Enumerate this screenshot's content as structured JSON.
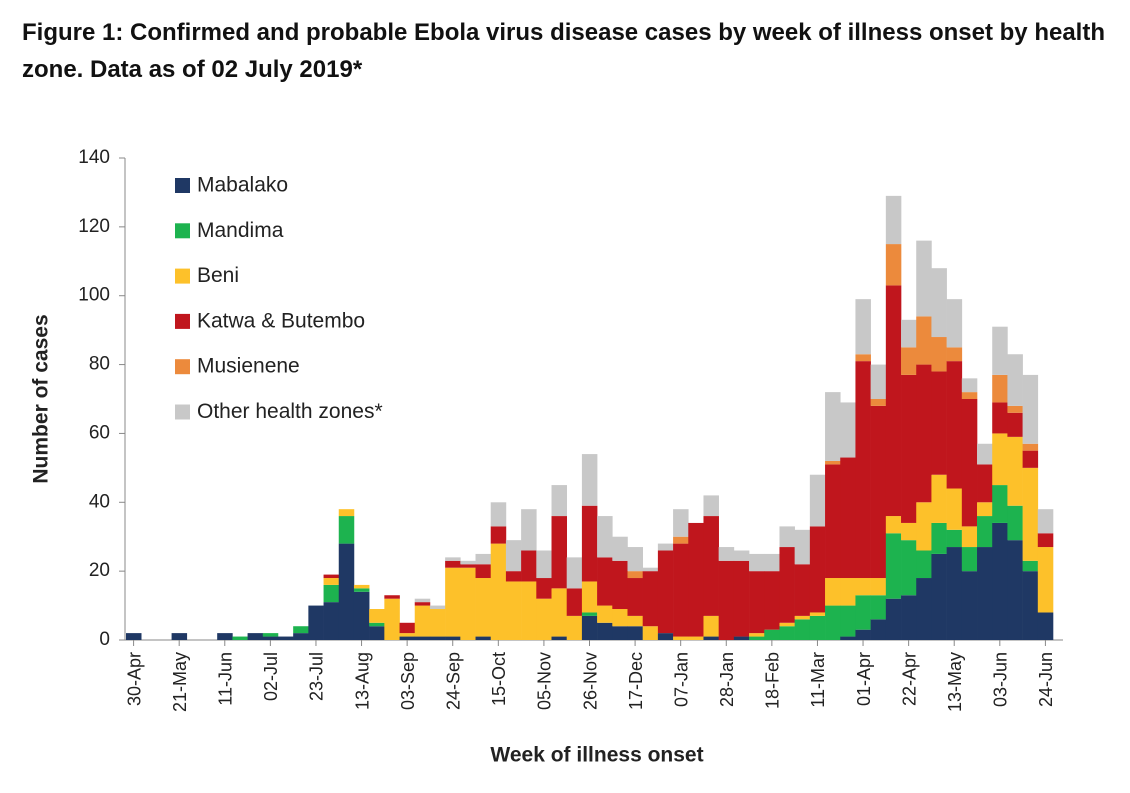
{
  "chart_data": {
    "type": "stacked_bar",
    "title": "Figure 1: Confirmed and probable Ebola virus disease cases by week of illness onset by health zone. Data as of 02 July 2019*",
    "x_label": "Week of illness onset",
    "y_label": "Number of cases",
    "legend": "upper left",
    "grid": false,
    "ylim": [
      0,
      140
    ],
    "yticks": [
      0,
      20,
      40,
      60,
      80,
      100,
      120,
      140
    ],
    "categories": [
      "30-Apr",
      null,
      null,
      "21-May",
      null,
      null,
      "11-Jun",
      null,
      null,
      "02-Jul",
      null,
      null,
      "23-Jul",
      null,
      null,
      "13-Aug",
      null,
      null,
      "03-Sep",
      null,
      null,
      "24-Sep",
      null,
      null,
      "15-Oct",
      null,
      null,
      "05-Nov",
      null,
      null,
      "26-Nov",
      null,
      null,
      "17-Dec",
      null,
      null,
      "07-Jan",
      null,
      null,
      "28-Jan",
      null,
      null,
      "18-Feb",
      null,
      null,
      "11-Mar",
      null,
      null,
      "01-Apr",
      null,
      null,
      "22-Apr",
      null,
      null,
      "13-May",
      null,
      null,
      "03-Jun",
      null,
      null,
      "24-Jun"
    ],
    "series": [
      {
        "name": "Mabalako",
        "color": "#1f3864",
        "values": [
          2,
          0,
          0,
          2,
          0,
          0,
          2,
          0,
          2,
          1,
          1,
          2,
          10,
          11,
          28,
          14,
          4,
          0,
          1,
          1,
          1,
          1,
          0,
          1,
          0,
          0,
          0,
          0,
          1,
          0,
          7,
          5,
          4,
          4,
          0,
          2,
          0,
          0,
          1,
          0,
          1,
          0,
          0,
          0,
          0,
          0,
          0,
          1,
          3,
          6,
          12,
          13,
          18,
          25,
          27,
          20,
          27,
          34,
          29,
          20,
          8
        ]
      },
      {
        "name": "Mandima",
        "color": "#1db34f",
        "values": [
          0,
          0,
          0,
          0,
          0,
          0,
          0,
          1,
          0,
          1,
          0,
          2,
          0,
          5,
          8,
          1,
          1,
          0,
          0,
          0,
          0,
          0,
          0,
          0,
          0,
          0,
          0,
          0,
          0,
          0,
          1,
          0,
          0,
          0,
          0,
          0,
          0,
          0,
          0,
          0,
          0,
          1,
          3,
          4,
          6,
          7,
          10,
          9,
          10,
          7,
          19,
          16,
          8,
          9,
          5,
          7,
          9,
          11,
          10,
          3,
          0
        ]
      },
      {
        "name": "Beni",
        "color": "#fdc12a",
        "values": [
          0,
          0,
          0,
          0,
          0,
          0,
          0,
          0,
          0,
          0,
          0,
          0,
          0,
          2,
          2,
          1,
          4,
          12,
          1,
          9,
          8,
          20,
          21,
          17,
          28,
          17,
          17,
          12,
          14,
          7,
          9,
          5,
          5,
          3,
          4,
          0,
          1,
          1,
          6,
          0,
          0,
          1,
          0,
          1,
          1,
          1,
          8,
          8,
          5,
          5,
          5,
          5,
          14,
          14,
          12,
          6,
          4,
          15,
          20,
          27,
          19
        ]
      },
      {
        "name": "Katwa & Butembo",
        "color": "#c0161d",
        "values": [
          0,
          0,
          0,
          0,
          0,
          0,
          0,
          0,
          0,
          0,
          0,
          0,
          0,
          1,
          0,
          0,
          0,
          1,
          3,
          1,
          0,
          2,
          1,
          4,
          5,
          3,
          9,
          6,
          21,
          8,
          22,
          14,
          14,
          11,
          16,
          24,
          27,
          33,
          29,
          23,
          22,
          18,
          17,
          22,
          15,
          25,
          33,
          35,
          63,
          50,
          67,
          43,
          40,
          30,
          37,
          37,
          11,
          9,
          7,
          5,
          4
        ]
      },
      {
        "name": "Musienene",
        "color": "#ec8a3c",
        "values": [
          0,
          0,
          0,
          0,
          0,
          0,
          0,
          0,
          0,
          0,
          0,
          0,
          0,
          0,
          0,
          0,
          0,
          0,
          0,
          0,
          0,
          0,
          0,
          0,
          0,
          0,
          0,
          0,
          0,
          0,
          0,
          0,
          0,
          2,
          0,
          0,
          2,
          0,
          0,
          0,
          0,
          0,
          0,
          0,
          0,
          0,
          1,
          0,
          2,
          2,
          12,
          8,
          14,
          10,
          4,
          2,
          0,
          8,
          2,
          2,
          0
        ]
      },
      {
        "name": "Other health zones*",
        "color": "#c8c8c8",
        "values": [
          0,
          0,
          0,
          0,
          0,
          0,
          0,
          0,
          0,
          0,
          0,
          0,
          0,
          0,
          0,
          0,
          0,
          0,
          0,
          1,
          1,
          1,
          1,
          3,
          7,
          9,
          12,
          8,
          9,
          9,
          15,
          12,
          7,
          7,
          1,
          2,
          8,
          0,
          6,
          4,
          3,
          5,
          5,
          6,
          10,
          15,
          20,
          16,
          16,
          10,
          14,
          8,
          22,
          20,
          14,
          4,
          6,
          14,
          15,
          20,
          7
        ]
      }
    ]
  }
}
